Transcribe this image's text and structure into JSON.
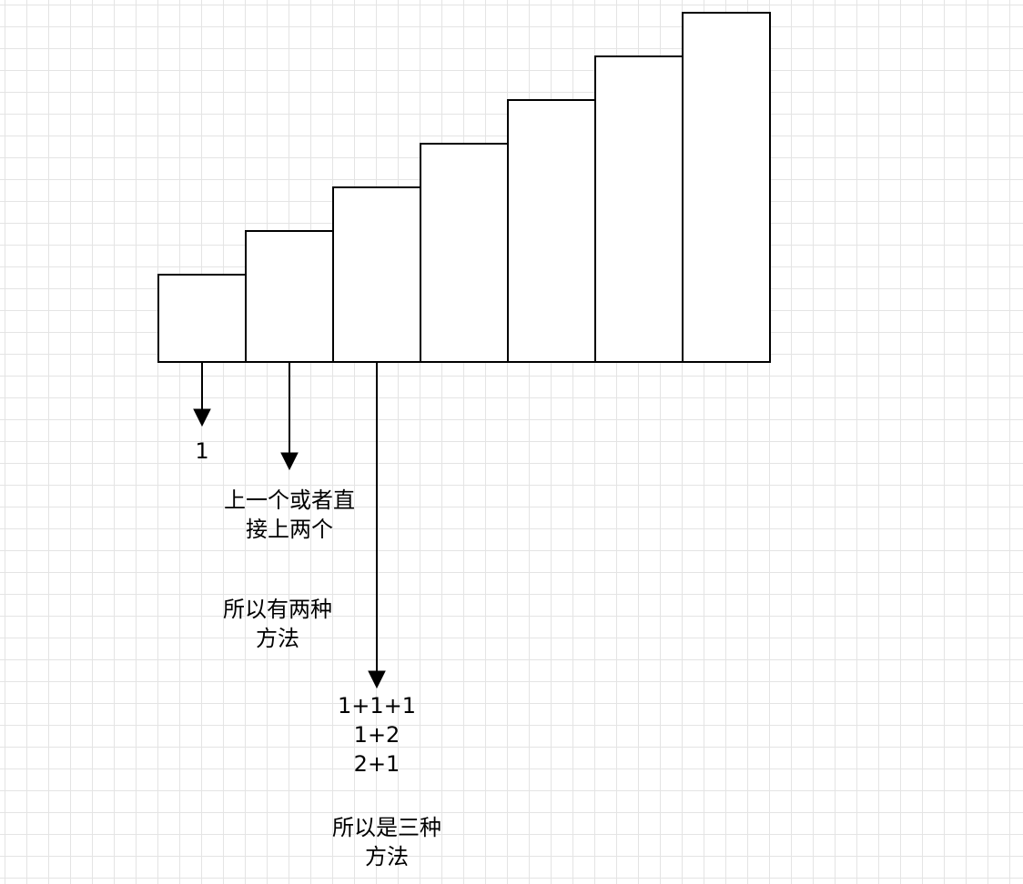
{
  "staircase": {
    "step_count": 7
  },
  "annotations": {
    "step1_count": "1",
    "step2_desc_line1": "上一个或者直",
    "step2_desc_line2": "接上两个",
    "step2_total_line1": "所以有两种",
    "step2_total_line2": "方法",
    "step3_way1": "1+1+1",
    "step3_way2": "1+2",
    "step3_way3": "2+1",
    "step3_total_line1": "所以是三种",
    "step3_total_line2": "方法"
  }
}
